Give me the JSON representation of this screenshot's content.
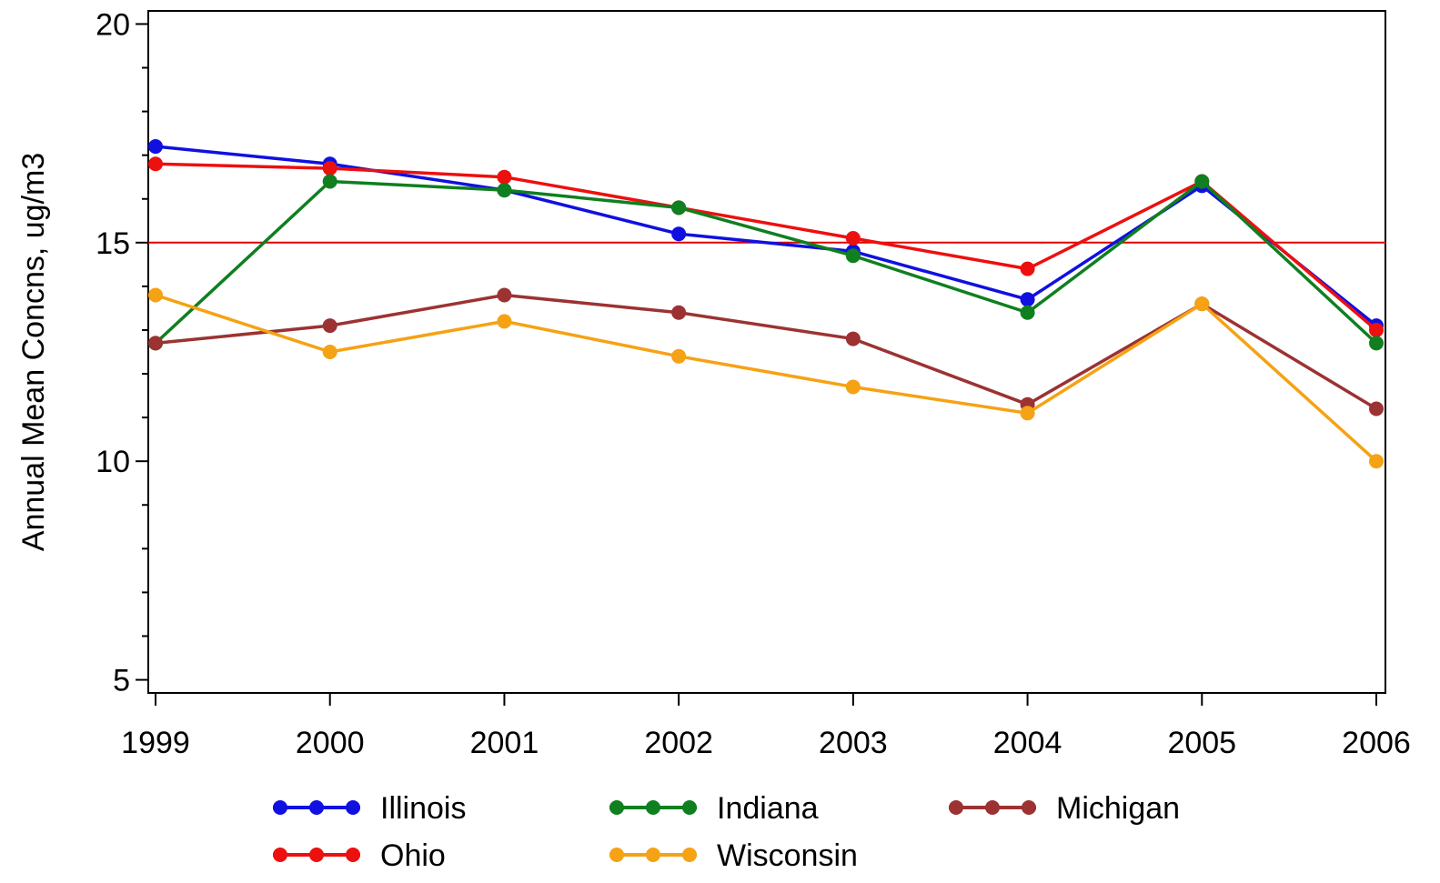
{
  "chart_data": {
    "type": "line",
    "title": "",
    "xlabel": "",
    "ylabel": "Annual Mean Concns, ug/m3",
    "x": [
      "1999",
      "2000",
      "2001",
      "2002",
      "2003",
      "2004",
      "2005",
      "2006"
    ],
    "ylim": [
      4.7,
      20.3
    ],
    "yticks": [
      "5",
      "10",
      "15",
      "20"
    ],
    "reference_line": {
      "y": 15,
      "color": "#e00000"
    },
    "grid": false,
    "legend_position": "bottom",
    "series": [
      {
        "name": "Illinois",
        "color": "#1010e0",
        "values": [
          17.2,
          16.8,
          16.2,
          15.2,
          14.8,
          13.7,
          16.3,
          13.1
        ]
      },
      {
        "name": "Ohio",
        "color": "#ee0f0f",
        "values": [
          16.8,
          16.7,
          16.5,
          15.8,
          15.1,
          14.4,
          16.4,
          13.0
        ]
      },
      {
        "name": "Indiana",
        "color": "#0f7f1f",
        "values": [
          12.7,
          16.4,
          16.2,
          15.8,
          14.7,
          13.4,
          16.4,
          12.7
        ]
      },
      {
        "name": "Michigan",
        "color": "#9c3232",
        "values": [
          12.7,
          13.1,
          13.8,
          13.4,
          12.8,
          11.3,
          13.6,
          11.2
        ]
      },
      {
        "name": "Wisconsin",
        "color": "#f5a214",
        "values": [
          13.8,
          12.5,
          13.2,
          12.4,
          11.7,
          11.1,
          13.6,
          10.0
        ]
      }
    ]
  }
}
